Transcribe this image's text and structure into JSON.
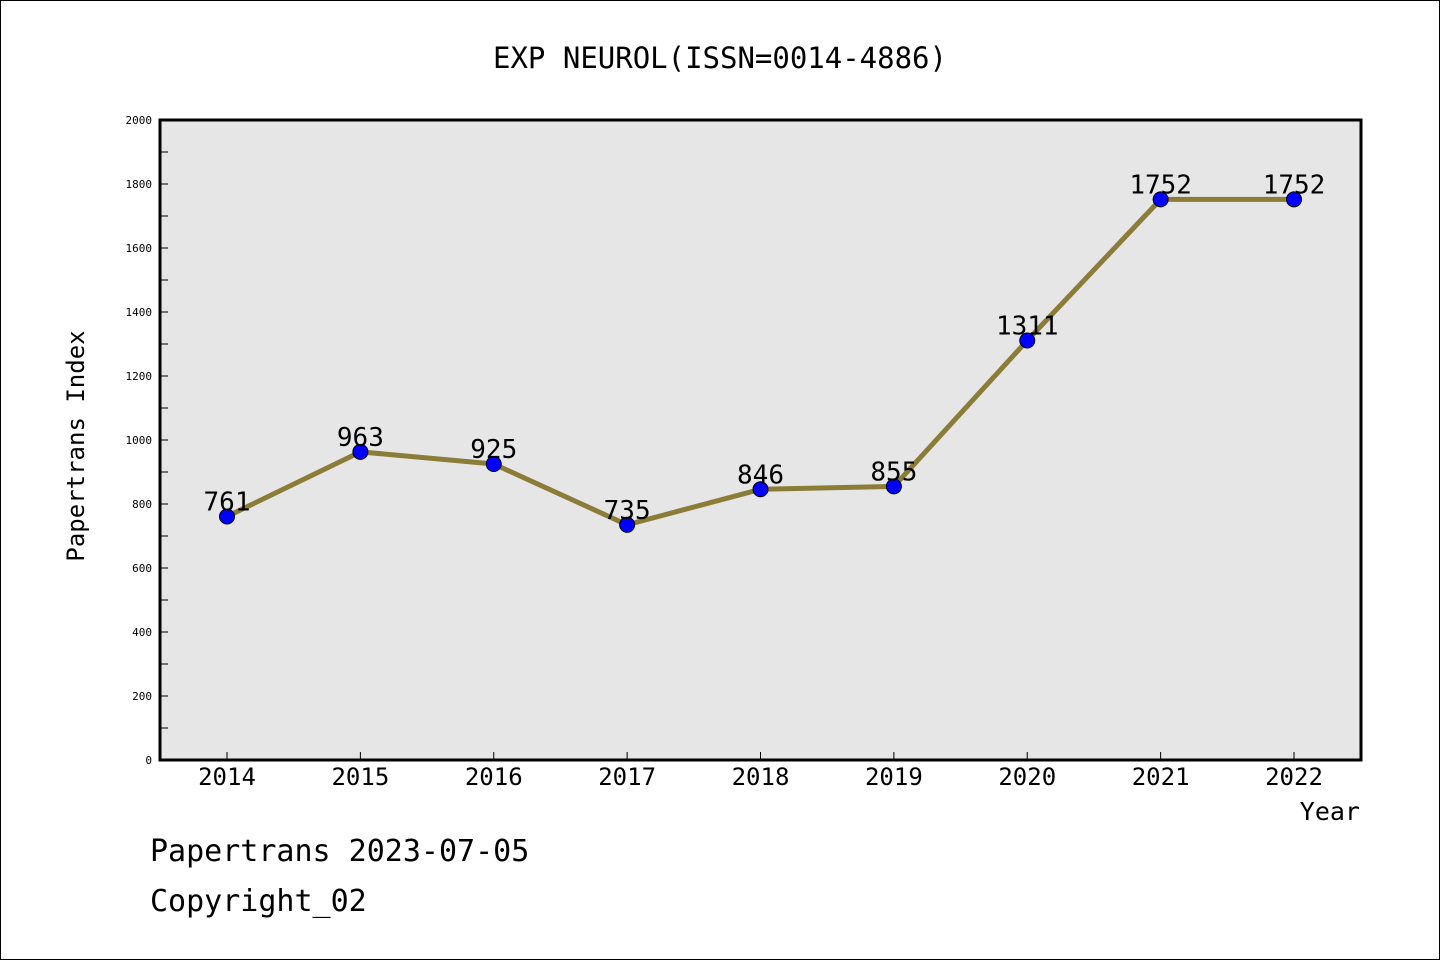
{
  "chart_data": {
    "type": "line",
    "title": "EXP NEUROL(ISSN=0014-4886)",
    "xlabel": "Year",
    "ylabel": "Papertrans Index",
    "categories": [
      "2014",
      "2015",
      "2016",
      "2017",
      "2018",
      "2019",
      "2020",
      "2021",
      "2022"
    ],
    "series": [
      {
        "values": [
          761,
          963,
          925,
          735,
          846,
          855,
          1311,
          1752,
          1752
        ],
        "line_color": "#8b7d37",
        "marker_color": "#0000ff"
      }
    ],
    "data_labels": [
      "761",
      "963",
      "925",
      "735",
      "846",
      "855",
      "1311",
      "1752",
      "1752"
    ],
    "ylim": [
      0,
      2000
    ],
    "yticks": [
      0,
      200,
      400,
      600,
      800,
      1000,
      1200,
      1400,
      1600,
      1800,
      2000
    ],
    "ytick_labels": [
      "0",
      "200",
      "400",
      "600",
      "800",
      "1000",
      "1200",
      "1400",
      "1600",
      "1800",
      "2000"
    ],
    "plot_background": "#e6e6e6",
    "grid": false
  },
  "footer": {
    "line1": "Papertrans 2023-07-05",
    "line2": "Copyright_02"
  }
}
